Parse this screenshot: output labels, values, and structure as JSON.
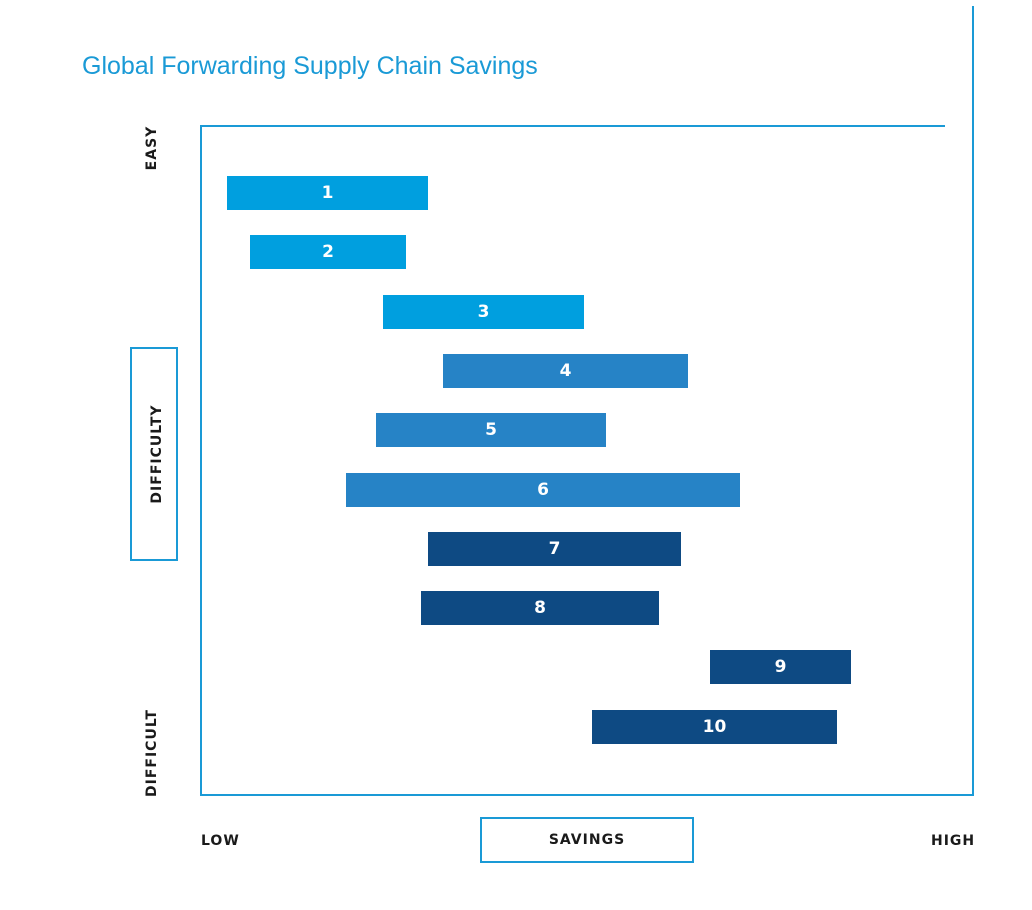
{
  "chart_data": {
    "type": "bar",
    "orientation": "horizontal-range",
    "title": "Global Forwarding Supply Chain Savings",
    "xlabel": "SAVINGS",
    "x_low_label": "LOW",
    "x_high_label": "HIGH",
    "ylabel": "DIFFICULTY",
    "y_top_label": "EASY",
    "y_bottom_label": "DIFFICULT",
    "xlim": [
      0,
      100
    ],
    "ylim": [
      0.5,
      10.5
    ],
    "bars": [
      {
        "label": "1",
        "start": 8,
        "end": 35,
        "color": "#009fdf"
      },
      {
        "label": "2",
        "start": 11,
        "end": 32,
        "color": "#009fdf"
      },
      {
        "label": "3",
        "start": 29,
        "end": 56,
        "color": "#009fdf"
      },
      {
        "label": "4",
        "start": 37,
        "end": 70,
        "color": "#2683c6"
      },
      {
        "label": "5",
        "start": 28,
        "end": 59,
        "color": "#2683c6"
      },
      {
        "label": "6",
        "start": 24,
        "end": 77,
        "color": "#2683c6"
      },
      {
        "label": "7",
        "start": 35,
        "end": 69,
        "color": "#0e4a83"
      },
      {
        "label": "8",
        "start": 34,
        "end": 66,
        "color": "#0e4a83"
      },
      {
        "label": "9",
        "start": 73,
        "end": 92,
        "color": "#0e4a83"
      },
      {
        "label": "10",
        "start": 57,
        "end": 90,
        "color": "#0e4a83"
      }
    ]
  }
}
